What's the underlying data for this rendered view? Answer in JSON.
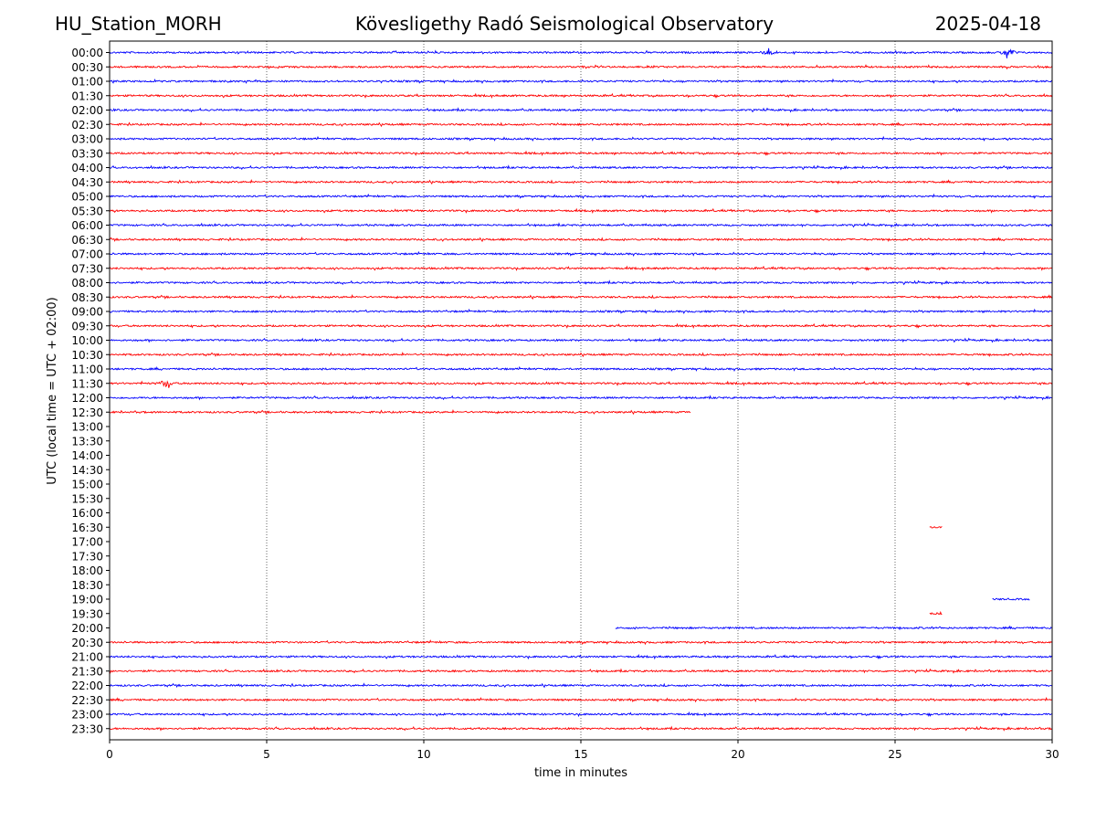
{
  "header": {
    "station": "HU_Station_MORH",
    "title": "Kövesligethy Radó Seismological Observatory",
    "date": "2025-04-18"
  },
  "chart_data": {
    "type": "line",
    "title": "Kövesligethy Radó Seismological Observatory",
    "xlabel": "time in minutes",
    "ylabel": "UTC (local time = UTC + 02:00)",
    "xlim": [
      0,
      30
    ],
    "x_ticks": [
      "0",
      "5",
      "10",
      "15",
      "20",
      "25",
      "30"
    ],
    "x_tick_values": [
      0,
      5,
      10,
      15,
      20,
      25,
      30
    ],
    "grid": "vertical dotted lines at x ticks",
    "colors": {
      "even": "#0000ff",
      "odd": "#ff0000",
      "grid": "#000000"
    },
    "rows": [
      {
        "label": "00:00",
        "segments": [
          [
            0,
            30
          ]
        ],
        "events": [
          [
            21,
            1.8
          ],
          [
            28.6,
            3.5
          ]
        ]
      },
      {
        "label": "00:30",
        "segments": [
          [
            0,
            30
          ]
        ],
        "events": []
      },
      {
        "label": "01:00",
        "segments": [
          [
            0,
            30
          ]
        ],
        "events": []
      },
      {
        "label": "01:30",
        "segments": [
          [
            0,
            30
          ]
        ],
        "events": []
      },
      {
        "label": "02:00",
        "segments": [
          [
            0,
            30
          ]
        ],
        "events": []
      },
      {
        "label": "02:30",
        "segments": [
          [
            0,
            30
          ]
        ],
        "events": []
      },
      {
        "label": "03:00",
        "segments": [
          [
            0,
            30
          ]
        ],
        "events": []
      },
      {
        "label": "03:30",
        "segments": [
          [
            0,
            30
          ]
        ],
        "events": []
      },
      {
        "label": "04:00",
        "segments": [
          [
            0,
            30
          ]
        ],
        "events": []
      },
      {
        "label": "04:30",
        "segments": [
          [
            0,
            30
          ]
        ],
        "events": []
      },
      {
        "label": "05:00",
        "segments": [
          [
            0,
            30
          ]
        ],
        "events": []
      },
      {
        "label": "05:30",
        "segments": [
          [
            0,
            30
          ]
        ],
        "events": []
      },
      {
        "label": "06:00",
        "segments": [
          [
            0,
            30
          ]
        ],
        "events": []
      },
      {
        "label": "06:30",
        "segments": [
          [
            0,
            30
          ]
        ],
        "events": []
      },
      {
        "label": "07:00",
        "segments": [
          [
            0,
            30
          ]
        ],
        "events": []
      },
      {
        "label": "07:30",
        "segments": [
          [
            0,
            30
          ]
        ],
        "events": []
      },
      {
        "label": "08:00",
        "segments": [
          [
            0,
            30
          ]
        ],
        "events": []
      },
      {
        "label": "08:30",
        "segments": [
          [
            0,
            30
          ]
        ],
        "events": []
      },
      {
        "label": "09:00",
        "segments": [
          [
            0,
            30
          ]
        ],
        "events": []
      },
      {
        "label": "09:30",
        "segments": [
          [
            0,
            30
          ]
        ],
        "events": []
      },
      {
        "label": "10:00",
        "segments": [
          [
            0,
            30
          ]
        ],
        "events": []
      },
      {
        "label": "10:30",
        "segments": [
          [
            0,
            30
          ]
        ],
        "events": []
      },
      {
        "label": "11:00",
        "segments": [
          [
            0,
            30
          ]
        ],
        "events": []
      },
      {
        "label": "11:30",
        "segments": [
          [
            0,
            30
          ]
        ],
        "events": [
          [
            1.8,
            3.0
          ]
        ]
      },
      {
        "label": "12:00",
        "segments": [
          [
            0,
            30
          ]
        ],
        "events": []
      },
      {
        "label": "12:30",
        "segments": [
          [
            0,
            18.5
          ]
        ],
        "events": []
      },
      {
        "label": "13:00",
        "segments": [],
        "events": []
      },
      {
        "label": "13:30",
        "segments": [],
        "events": []
      },
      {
        "label": "14:00",
        "segments": [],
        "events": []
      },
      {
        "label": "14:30",
        "segments": [],
        "events": []
      },
      {
        "label": "15:00",
        "segments": [],
        "events": []
      },
      {
        "label": "15:30",
        "segments": [],
        "events": []
      },
      {
        "label": "16:00",
        "segments": [],
        "events": []
      },
      {
        "label": "16:30",
        "segments": [
          [
            26.1,
            26.5
          ]
        ],
        "events": []
      },
      {
        "label": "17:00",
        "segments": [],
        "events": []
      },
      {
        "label": "17:30",
        "segments": [],
        "events": []
      },
      {
        "label": "18:00",
        "segments": [],
        "events": []
      },
      {
        "label": "18:30",
        "segments": [],
        "events": []
      },
      {
        "label": "19:00",
        "segments": [
          [
            28.1,
            29.3
          ]
        ],
        "events": []
      },
      {
        "label": "19:30",
        "segments": [
          [
            26.1,
            26.5
          ]
        ],
        "events": []
      },
      {
        "label": "20:00",
        "segments": [
          [
            16.1,
            30
          ]
        ],
        "events": []
      },
      {
        "label": "20:30",
        "segments": [
          [
            0,
            30
          ]
        ],
        "events": []
      },
      {
        "label": "21:00",
        "segments": [
          [
            0,
            30
          ]
        ],
        "events": []
      },
      {
        "label": "21:30",
        "segments": [
          [
            0,
            30
          ]
        ],
        "events": []
      },
      {
        "label": "22:00",
        "segments": [
          [
            0,
            30
          ]
        ],
        "events": []
      },
      {
        "label": "22:30",
        "segments": [
          [
            0,
            30
          ]
        ],
        "events": []
      },
      {
        "label": "23:00",
        "segments": [
          [
            0,
            30
          ]
        ],
        "events": []
      },
      {
        "label": "23:30",
        "segments": [
          [
            0,
            30
          ]
        ],
        "events": []
      }
    ]
  }
}
